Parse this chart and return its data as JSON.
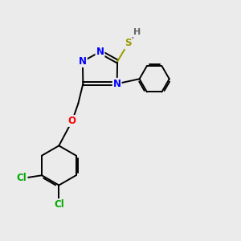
{
  "bg_color": "#ebebeb",
  "atom_colors": {
    "N": "#0000ff",
    "S": "#999900",
    "O": "#ff0000",
    "Cl": "#00aa00",
    "C": "#000000",
    "H": "#666666"
  },
  "bond_color": "#000000",
  "figsize": [
    3.0,
    3.0
  ],
  "dpi": 100,
  "lw": 1.4,
  "fs": 8.5
}
